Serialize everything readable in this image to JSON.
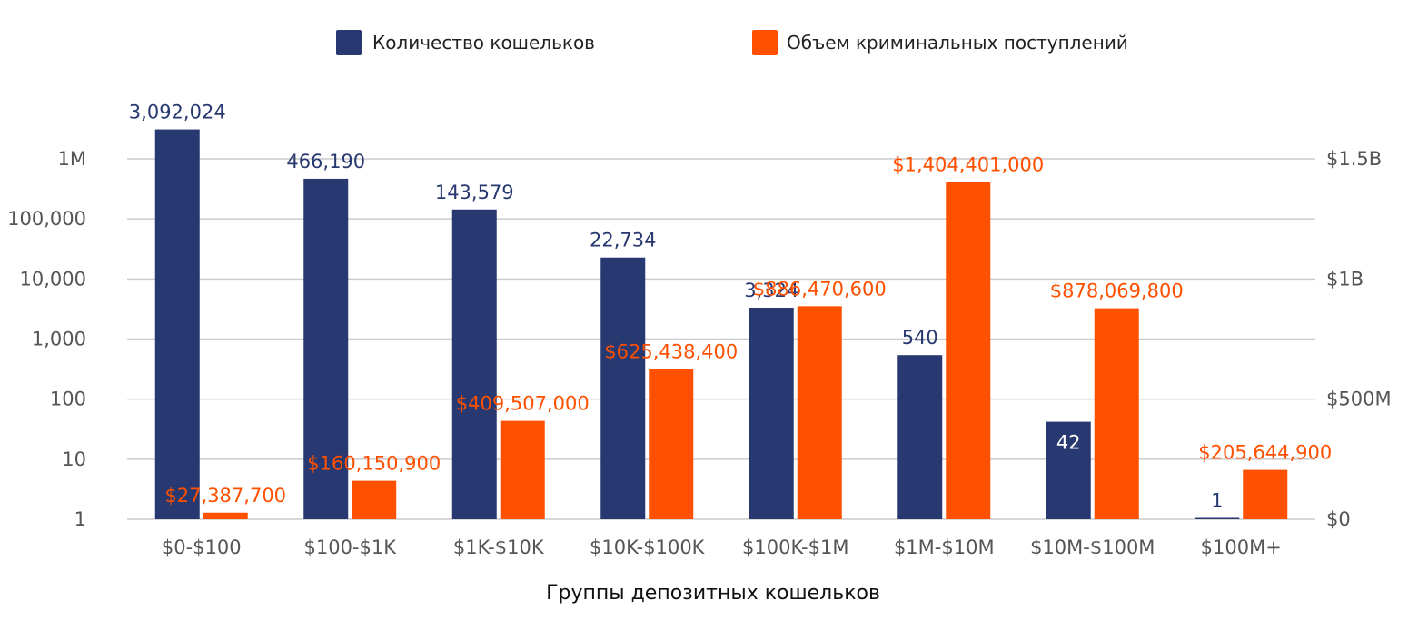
{
  "chart_data": {
    "type": "bar",
    "xlabel": "Группы депозитных кошельков",
    "categories": [
      "$0-$100",
      "$100-$1K",
      "$1K-$10K",
      "$10K-$100K",
      "$100K-$1M",
      "$1M-$10M",
      "$10M-$100M",
      "$100M+"
    ],
    "series": [
      {
        "name": "Количество кошельков",
        "color": "#283870",
        "axis": "left",
        "values": [
          3092024,
          466190,
          143579,
          22734,
          3324,
          540,
          42,
          1
        ],
        "labels": [
          "3,092,024",
          "466,190",
          "143,579",
          "22,734",
          "3,324",
          "540",
          "42",
          "1"
        ]
      },
      {
        "name": "Объем криминальных поступлений",
        "color": "#ff5000",
        "axis": "right",
        "values": [
          27387700,
          160150900,
          409507000,
          625438400,
          886470600,
          1404401000,
          878069800,
          205644900
        ],
        "labels": [
          "$27,387,700",
          "$160,150,900",
          "$409,507,000",
          "$625,438,400",
          "$886,470,600",
          "$1,404,401,000",
          "$878,069,800",
          "$205,644,900"
        ]
      }
    ],
    "left_axis": {
      "scale": "log",
      "ticks": [
        1,
        10,
        100,
        1000,
        10000,
        100000,
        1000000
      ],
      "tick_labels": [
        "1",
        "10",
        "100",
        "1,000",
        "10,000",
        "100,000",
        "1M"
      ]
    },
    "right_axis": {
      "scale": "linear",
      "ylim": [
        0,
        1500000000
      ],
      "ticks": [
        0,
        500000000,
        1000000000,
        1500000000
      ],
      "tick_labels": [
        "$0",
        "$500M",
        "$1B",
        "$1.5B"
      ]
    },
    "grid": true,
    "legend_position": "top"
  }
}
